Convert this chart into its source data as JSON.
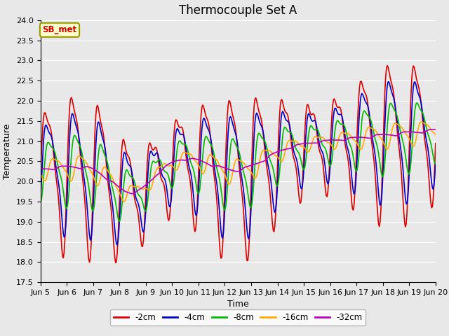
{
  "title": "Thermocouple Set A",
  "xlabel": "Time",
  "ylabel": "Temperature",
  "ylim": [
    17.5,
    24.0
  ],
  "yticks": [
    17.5,
    18.0,
    18.5,
    19.0,
    19.5,
    20.0,
    20.5,
    21.0,
    21.5,
    22.0,
    22.5,
    23.0,
    23.5,
    24.0
  ],
  "line_colors": [
    "#dd0000",
    "#0000cc",
    "#00bb00",
    "#ffaa00",
    "#bb00bb"
  ],
  "line_labels": [
    "-2cm",
    "-4cm",
    "-8cm",
    "-16cm",
    "-32cm"
  ],
  "line_widths": [
    1.2,
    1.2,
    1.2,
    1.2,
    1.2
  ],
  "background_color": "#e8e8e8",
  "legend_label": "SB_met",
  "legend_bg": "#ffffcc",
  "legend_edge": "#999900",
  "legend_text_color": "#cc0000",
  "title_fontsize": 12,
  "axis_fontsize": 9,
  "tick_fontsize": 8,
  "figwidth": 6.4,
  "figheight": 4.8,
  "dpi": 100,
  "n_points": 500,
  "x_start": 5.0,
  "x_end": 20.0,
  "xtick_positions": [
    5,
    6,
    7,
    8,
    9,
    10,
    11,
    12,
    13,
    14,
    15,
    16,
    17,
    18,
    19,
    20
  ],
  "xtick_labels": [
    "Jun 5",
    "Jun 6",
    "Jun 7",
    "Jun 8",
    "Jun 9",
    "Jun 10",
    "Jun 11",
    "Jun 12",
    "Jun 13",
    "Jun 14",
    "Jun 15",
    "Jun 16",
    "Jun 17",
    "Jun 18",
    "Jun 19",
    "Jun 20"
  ]
}
